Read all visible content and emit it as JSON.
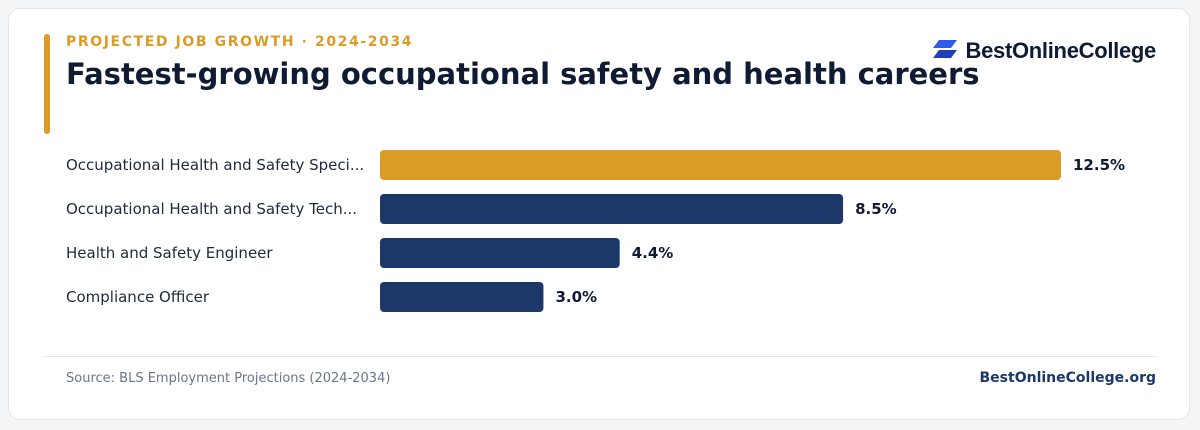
{
  "header": {
    "eyebrow": "PROJECTED JOB GROWTH · 2024-2034",
    "title": "Fastest-growing occupational safety and health careers"
  },
  "brand": {
    "name": "BestOnlineCollege",
    "logo_icon": "parallelogram-stack-icon"
  },
  "footer": {
    "source": "Source: BLS Employment Projections (2024-2034)",
    "site": "BestOnlineCollege.org"
  },
  "colors": {
    "accent": "#db9b27",
    "primary": "#1c3869",
    "logo_blue": "#2f5bea"
  },
  "chart_data": {
    "type": "bar",
    "orientation": "horizontal",
    "categories": [
      "Occupational Health and Safety Speci...",
      "Occupational Health and Safety Tech...",
      "Health and Safety Engineer",
      "Compliance Officer"
    ],
    "values": [
      12.5,
      8.5,
      4.4,
      3.0
    ],
    "value_labels": [
      "12.5%",
      "8.5%",
      "4.4%",
      "3.0%"
    ],
    "highlight_index": 0,
    "xlim": [
      0,
      12.5
    ],
    "grid": false,
    "legend": "none"
  }
}
